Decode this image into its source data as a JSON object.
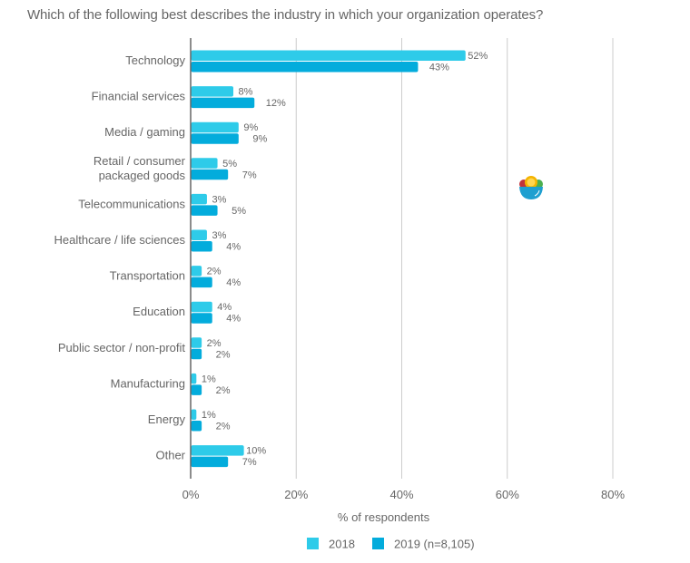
{
  "chart_data": {
    "type": "bar",
    "orientation": "horizontal",
    "title": "Which of the following best describes the industry in which your organization operates?",
    "xlabel": "% of respondents",
    "ylabel": "",
    "xlim": [
      0,
      80
    ],
    "xticks": [
      0,
      20,
      40,
      60,
      80
    ],
    "xtick_labels": [
      "0%",
      "20%",
      "40%",
      "60%",
      "80%"
    ],
    "grid": true,
    "legend_position": "bottom",
    "categories": [
      [
        "Technology"
      ],
      [
        "Financial services"
      ],
      [
        "Media / gaming"
      ],
      [
        "Retail / consumer",
        "packaged goods"
      ],
      [
        "Telecommunications"
      ],
      [
        "Healthcare / life sciences"
      ],
      [
        "Transportation"
      ],
      [
        "Education"
      ],
      [
        "Public sector / non-profit"
      ],
      [
        "Manufacturing"
      ],
      [
        "Energy"
      ],
      [
        "Other"
      ]
    ],
    "series": [
      {
        "name": "2018",
        "color": "#2ecbe9",
        "values": [
          52,
          8,
          9,
          5,
          3,
          3,
          2,
          4,
          2,
          1,
          1,
          10
        ],
        "labels": [
          "52%",
          "8%",
          "9%",
          "5%",
          "3%",
          "3%",
          "2%",
          "4%",
          "2%",
          "1%",
          "1%",
          "10%"
        ]
      },
      {
        "name": "2019 (n=8,105)",
        "color": "#03acdc",
        "values": [
          43,
          12,
          9,
          7,
          5,
          4,
          4,
          4,
          2,
          2,
          2,
          7
        ],
        "labels": [
          "43%",
          "12%",
          "9%",
          "7%",
          "5%",
          "4%",
          "4%",
          "4%",
          "2%",
          "2%",
          "2%",
          "7%"
        ]
      }
    ]
  },
  "decoration": {
    "icon": "fruit-bowl-icon"
  }
}
